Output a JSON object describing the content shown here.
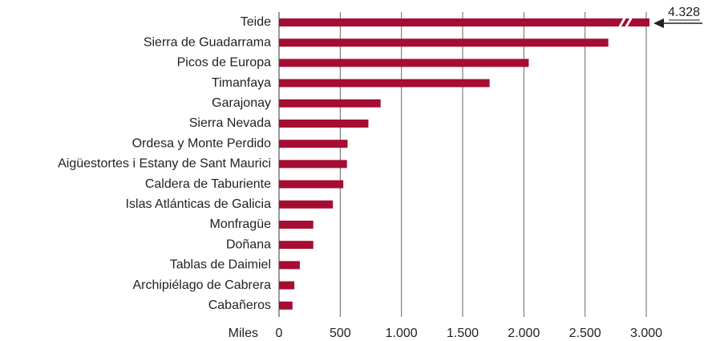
{
  "chart_data": {
    "type": "barh",
    "categories": [
      "Teide",
      "Sierra de Guadarrama",
      "Picos de Europa",
      "Timanfaya",
      "Garajonay",
      "Sierra Nevada",
      "Ordesa y Monte Perdido",
      "Aigüestortes i Estany de Sant Maurici",
      "Caldera de Taburiente",
      "Islas Atlánticas de Galicia",
      "Monfragüe",
      "Doñana",
      "Tablas de Daimiel",
      "Archipiélago de Cabrera",
      "Cabañeros"
    ],
    "values": [
      4328,
      2690,
      2040,
      1720,
      830,
      730,
      560,
      555,
      525,
      440,
      280,
      280,
      170,
      125,
      110
    ],
    "value_labels": [
      "4.328",
      null,
      null,
      null,
      null,
      null,
      null,
      null,
      null,
      null,
      null,
      null,
      null,
      null,
      null
    ],
    "color": "#a50d33",
    "xlabel": "Miles",
    "xlim": [
      0,
      3000
    ],
    "xticks": [
      0,
      500,
      {
        "value": 1000,
        "label": "1.000"
      },
      {
        "value": 1500,
        "label": "1.500"
      },
      {
        "value": 2000,
        "label": "2.000"
      },
      {
        "value": 2500,
        "label": "2.500"
      },
      {
        "value": 3000,
        "label": "3.000"
      }
    ],
    "grid": true
  }
}
